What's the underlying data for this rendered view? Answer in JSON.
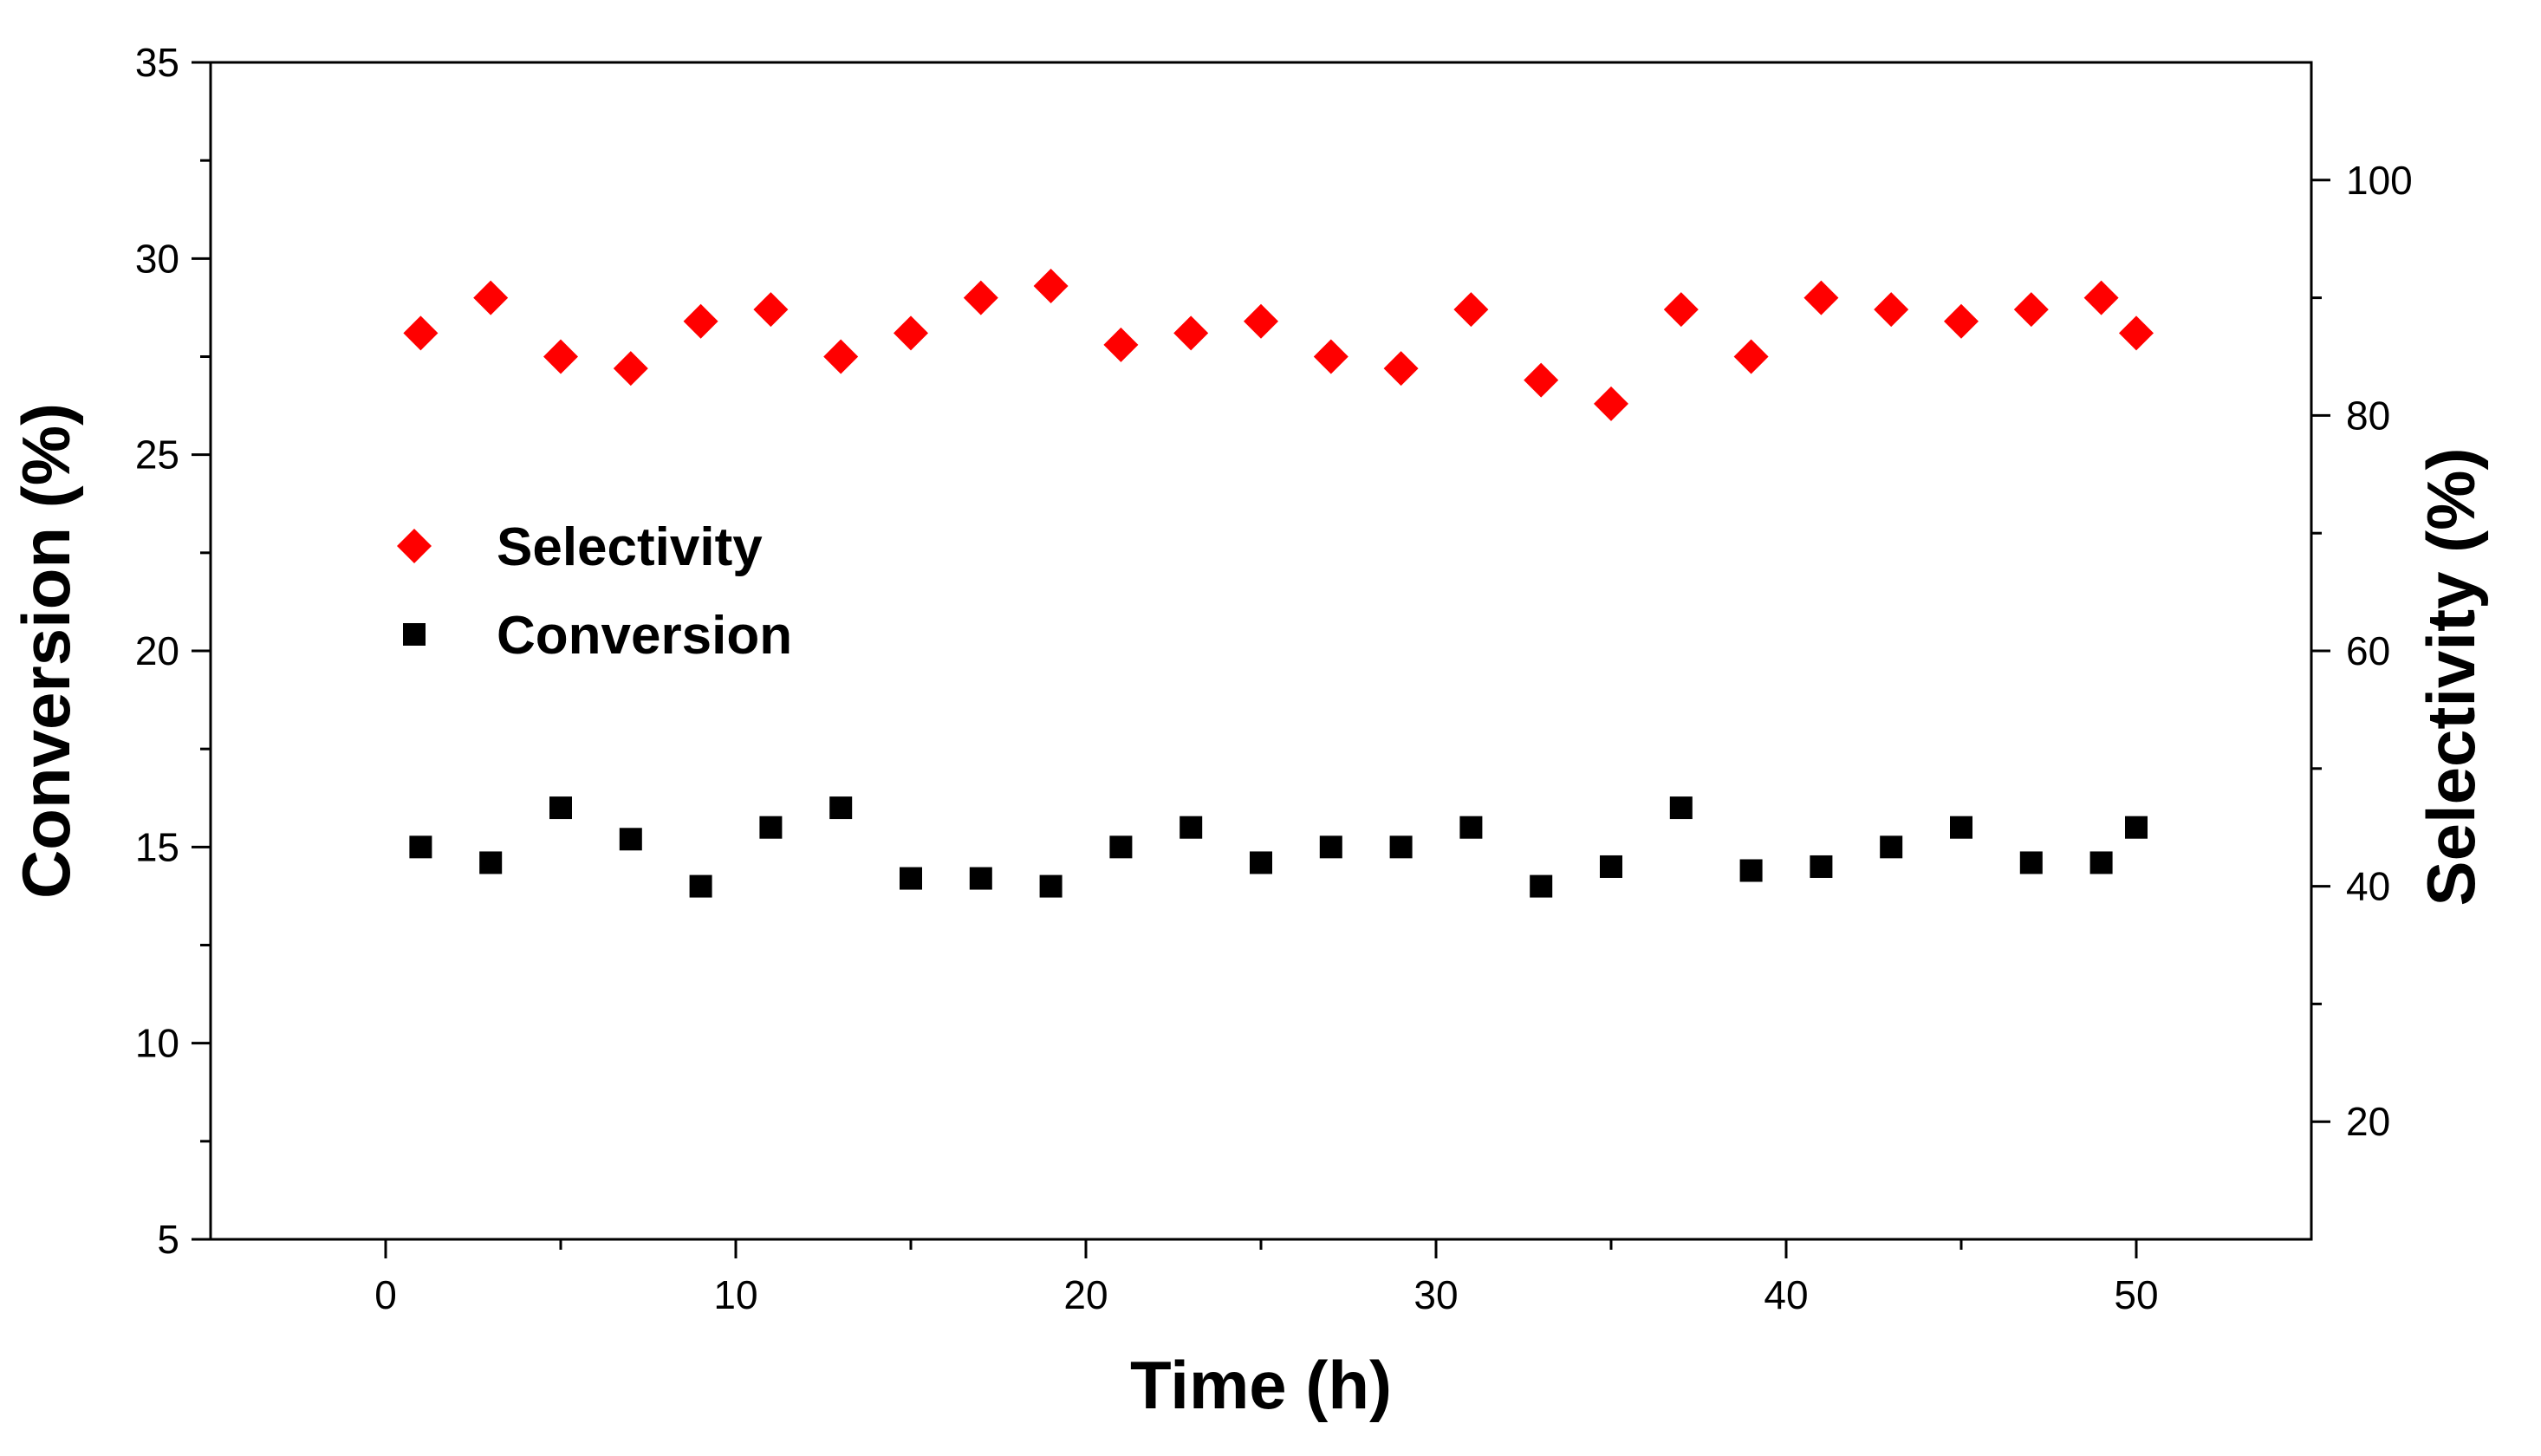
{
  "chart_data": {
    "type": "scatter",
    "xlabel": "Time (h)",
    "ylabel_left": "Conversion (%)",
    "ylabel_right": "Selectivity (%)",
    "xlim": [
      -5,
      55
    ],
    "ylim_left": [
      5,
      35
    ],
    "ylim_right": [
      10,
      110
    ],
    "xticks": [
      0,
      10,
      20,
      30,
      40,
      50
    ],
    "yticks_left": [
      5,
      10,
      15,
      20,
      25,
      30,
      35
    ],
    "yticks_right": [
      20,
      40,
      60,
      80,
      100
    ],
    "legend_position": "center-left",
    "grid": false,
    "series": [
      {
        "name": "Selectivity",
        "axis": "right",
        "marker": "diamond",
        "color": "#ff0000",
        "x": [
          1,
          3,
          5,
          7,
          9,
          11,
          13,
          15,
          17,
          19,
          21,
          23,
          25,
          27,
          29,
          31,
          33,
          35,
          37,
          39,
          41,
          43,
          45,
          47,
          49,
          50
        ],
        "y": [
          87,
          90,
          85,
          84,
          88,
          89,
          85,
          87,
          90,
          91,
          86,
          87,
          88,
          85,
          84,
          89,
          83,
          81,
          89,
          85,
          90,
          89,
          88,
          89,
          90,
          87
        ]
      },
      {
        "name": "Conversion",
        "axis": "left",
        "marker": "square",
        "color": "#000000",
        "x": [
          1,
          3,
          5,
          7,
          9,
          11,
          13,
          15,
          17,
          19,
          21,
          23,
          25,
          27,
          29,
          31,
          33,
          35,
          37,
          39,
          41,
          43,
          45,
          47,
          49,
          50
        ],
        "y": [
          15.0,
          14.6,
          16.0,
          15.2,
          14.0,
          15.5,
          16.0,
          14.2,
          14.2,
          14.0,
          15.0,
          15.5,
          14.6,
          15.0,
          15.0,
          15.5,
          14.0,
          14.5,
          16.0,
          14.4,
          14.5,
          15.0,
          15.5,
          14.6,
          14.6,
          15.5
        ]
      }
    ]
  }
}
